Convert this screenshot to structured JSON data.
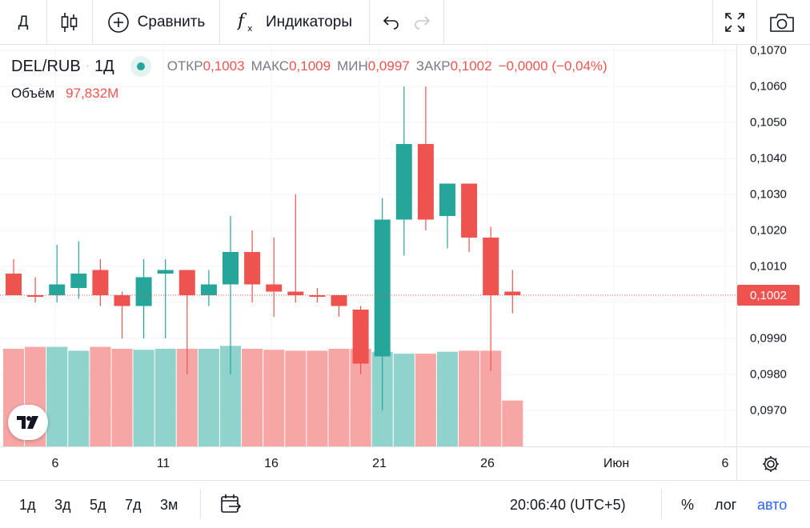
{
  "toolbar": {
    "interval": "Д",
    "compare_label": "Сравнить",
    "indicators_label": "Индикаторы"
  },
  "legend": {
    "symbol": "DEL/RUB",
    "separator": "·",
    "interval": "1Д",
    "open_label": "ОТКР",
    "open_value": "0,1003",
    "high_label": "МАКС",
    "high_value": "0,1009",
    "low_label": "МИН",
    "low_value": "0,0997",
    "close_label": "ЗАКР",
    "close_value": "0,1002",
    "change": "−0,0000 (−0,04%)",
    "volume_label": "Объём",
    "volume_value": "97,832M"
  },
  "price_scale": {
    "ticks": [
      "0,1070",
      "0,1060",
      "0,1050",
      "0,1040",
      "0,1030",
      "0,1020",
      "0,1010",
      "0,0990",
      "0,0980",
      "0,0970"
    ],
    "current_price": "0,1002"
  },
  "time_axis": {
    "ticks": [
      "6",
      "11",
      "16",
      "21",
      "26",
      "Июн",
      "6"
    ]
  },
  "bottom_bar": {
    "ranges": [
      "1д",
      "3д",
      "5д",
      "7д",
      "3м"
    ],
    "clock": "20:06:40 (UTC+5)",
    "percent": "%",
    "log": "лог",
    "auto": "авто"
  },
  "colors": {
    "up": "#26a69a",
    "down": "#ef5350",
    "up_volume": "#8fd3cc",
    "down_volume": "#f6a6a5",
    "accent": "#2962ff"
  },
  "icons": {
    "candles": "candles-icon",
    "compare": "plus-circle-icon",
    "indicators": "fx-icon",
    "undo": "undo-icon",
    "redo": "redo-icon",
    "fullscreen": "fullscreen-icon",
    "screenshot": "camera-icon",
    "settings": "gear-icon",
    "date_range": "calendar-arrow-icon",
    "logo": "tradingview-logo-icon"
  },
  "chart_data": {
    "type": "candlestick",
    "symbol": "DEL/RUB",
    "interval": "1Д",
    "ylim": [
      0.0962,
      0.1072
    ],
    "candles": [
      {
        "day": "4",
        "o": 0.1008,
        "h": 0.1012,
        "l": 0.1002,
        "c": 0.1002
      },
      {
        "day": "5",
        "o": 0.1002,
        "h": 0.1007,
        "l": 0.1,
        "c": 0.1002
      },
      {
        "day": "6",
        "o": 0.1002,
        "h": 0.1016,
        "l": 0.1,
        "c": 0.1005
      },
      {
        "day": "7",
        "o": 0.1004,
        "h": 0.1017,
        "l": 0.1001,
        "c": 0.1008
      },
      {
        "day": "8",
        "o": 0.1009,
        "h": 0.1012,
        "l": 0.0999,
        "c": 0.1002
      },
      {
        "day": "9",
        "o": 0.1002,
        "h": 0.1003,
        "l": 0.099,
        "c": 0.0999
      },
      {
        "day": "10",
        "o": 0.0999,
        "h": 0.1012,
        "l": 0.099,
        "c": 0.1007
      },
      {
        "day": "11",
        "o": 0.1008,
        "h": 0.1012,
        "l": 0.099,
        "c": 0.1009
      },
      {
        "day": "12",
        "o": 0.1009,
        "h": 0.1009,
        "l": 0.098,
        "c": 0.1002
      },
      {
        "day": "13",
        "o": 0.1002,
        "h": 0.1009,
        "l": 0.0999,
        "c": 0.1005
      },
      {
        "day": "14",
        "o": 0.1005,
        "h": 0.1024,
        "l": 0.098,
        "c": 0.1014
      },
      {
        "day": "15",
        "o": 0.1014,
        "h": 0.102,
        "l": 0.1,
        "c": 0.1005
      },
      {
        "day": "16",
        "o": 0.1005,
        "h": 0.1018,
        "l": 0.0996,
        "c": 0.1003
      },
      {
        "day": "17",
        "o": 0.1003,
        "h": 0.103,
        "l": 0.1,
        "c": 0.1002
      },
      {
        "day": "18",
        "o": 0.1002,
        "h": 0.1004,
        "l": 0.1,
        "c": 0.1002
      },
      {
        "day": "19",
        "o": 0.1002,
        "h": 0.1002,
        "l": 0.0996,
        "c": 0.0999
      },
      {
        "day": "20",
        "o": 0.0998,
        "h": 0.0999,
        "l": 0.098,
        "c": 0.0983
      },
      {
        "day": "21",
        "o": 0.0985,
        "h": 0.1029,
        "l": 0.097,
        "c": 0.1023
      },
      {
        "day": "22",
        "o": 0.1023,
        "h": 0.106,
        "l": 0.1013,
        "c": 0.1044
      },
      {
        "day": "23",
        "o": 0.1044,
        "h": 0.106,
        "l": 0.102,
        "c": 0.1023
      },
      {
        "day": "24",
        "o": 0.1024,
        "h": 0.1033,
        "l": 0.1015,
        "c": 0.1033
      },
      {
        "day": "25",
        "o": 0.1033,
        "h": 0.1033,
        "l": 0.1014,
        "c": 0.1018
      },
      {
        "day": "26",
        "o": 0.1018,
        "h": 0.1021,
        "l": 0.0981,
        "c": 0.1002
      },
      {
        "day": "27",
        "o": 0.1003,
        "h": 0.1009,
        "l": 0.0997,
        "c": 0.1002
      }
    ],
    "volume_relative": [
      1.0,
      1.02,
      1.02,
      0.98,
      1.02,
      1.0,
      0.99,
      1.0,
      1.0,
      1.0,
      1.03,
      1.0,
      0.99,
      0.98,
      0.98,
      1.0,
      1.0,
      0.97,
      0.95,
      0.95,
      0.97,
      0.98,
      0.98,
      0.47
    ]
  }
}
